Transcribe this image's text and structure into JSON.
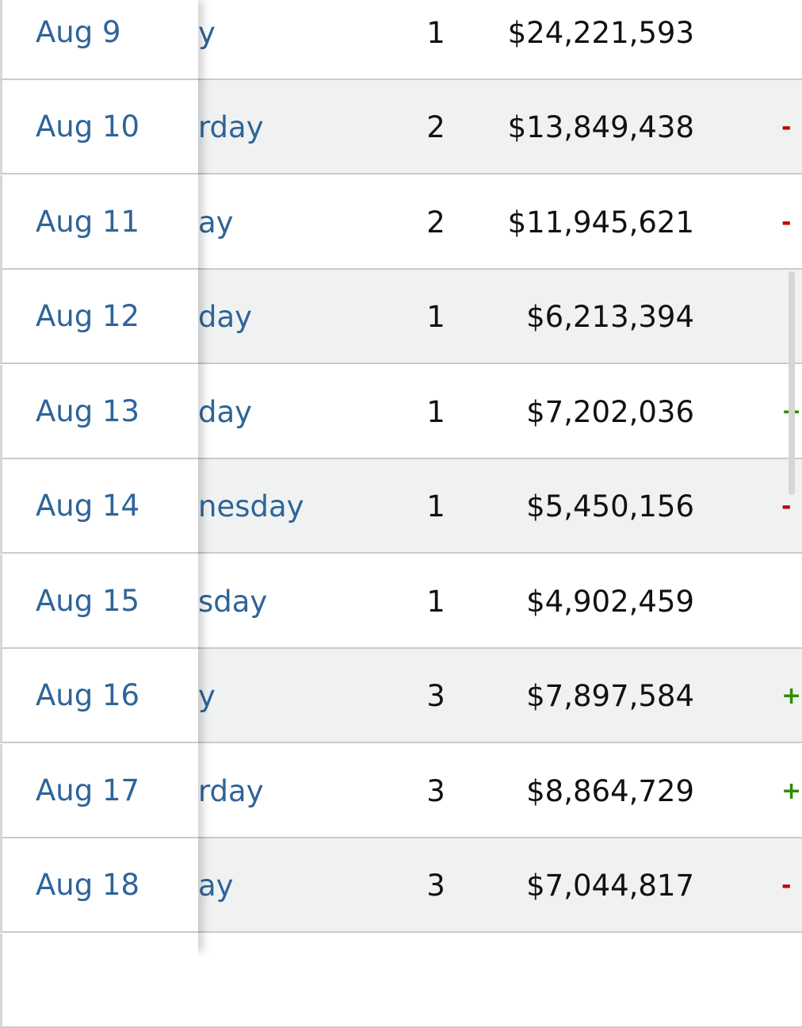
{
  "rows": [
    {
      "date": "Aug 9",
      "day": "y",
      "releases": "1",
      "gross": "$24,221,593",
      "change": "",
      "change_type": ""
    },
    {
      "date": "Aug 10",
      "day": "rday",
      "releases": "2",
      "gross": "$13,849,438",
      "change": "-",
      "change_type": "neg"
    },
    {
      "date": "Aug 11",
      "day": "ay",
      "releases": "2",
      "gross": "$11,945,621",
      "change": "-",
      "change_type": "neg"
    },
    {
      "date": "Aug 12",
      "day": "day",
      "releases": "1",
      "gross": "$6,213,394",
      "change": "",
      "change_type": ""
    },
    {
      "date": "Aug 13",
      "day": "day",
      "releases": "1",
      "gross": "$7,202,036",
      "change": "+",
      "change_type": "pos"
    },
    {
      "date": "Aug 14",
      "day": "nesday",
      "releases": "1",
      "gross": "$5,450,156",
      "change": "-",
      "change_type": "neg"
    },
    {
      "date": "Aug 15",
      "day": "sday",
      "releases": "1",
      "gross": "$4,902,459",
      "change": "",
      "change_type": ""
    },
    {
      "date": "Aug 16",
      "day": "y",
      "releases": "3",
      "gross": "$7,897,584",
      "change": "+",
      "change_type": "pos"
    },
    {
      "date": "Aug 17",
      "day": "rday",
      "releases": "3",
      "gross": "$8,864,729",
      "change": "+",
      "change_type": "pos"
    },
    {
      "date": "Aug 18",
      "day": "ay",
      "releases": "3",
      "gross": "$7,044,817",
      "change": "-",
      "change_type": "neg"
    }
  ],
  "colors": {
    "link": "#2e6499",
    "positive": "#2e8b00",
    "negative": "#c40000",
    "row_alt": "#f0f2f2"
  }
}
